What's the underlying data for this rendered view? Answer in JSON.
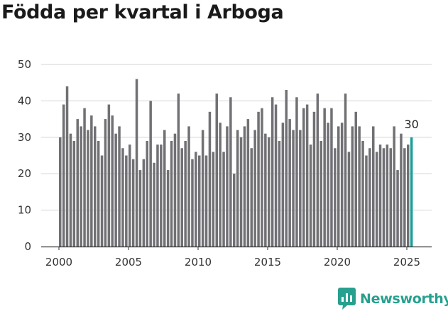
{
  "chart_data": {
    "type": "bar",
    "title": "Födda per kvartal i Arboga",
    "ylim": [
      0,
      50
    ],
    "y_ticks": [
      0,
      10,
      20,
      30,
      40,
      50
    ],
    "x_ticks": [
      2000,
      2005,
      2010,
      2015,
      2020,
      2025
    ],
    "x_start": 2000,
    "quarters_per_year": 4,
    "grid": true,
    "highlight_label": "30",
    "colors": {
      "bar": "#717074",
      "highlight": "#1a9e98",
      "grid": "#d4d4d4",
      "axis": "#333333"
    },
    "values": [
      30,
      39,
      44,
      31,
      29,
      35,
      33,
      38,
      32,
      36,
      33,
      29,
      25,
      35,
      39,
      36,
      31,
      33,
      27,
      25,
      28,
      24,
      46,
      21,
      24,
      29,
      40,
      23,
      28,
      28,
      32,
      21,
      29,
      31,
      42,
      27,
      29,
      33,
      24,
      26,
      25,
      32,
      25,
      37,
      26,
      42,
      34,
      26,
      33,
      41,
      20,
      32,
      30,
      33,
      35,
      27,
      32,
      37,
      38,
      31,
      30,
      41,
      39,
      29,
      34,
      43,
      35,
      32,
      41,
      32,
      38,
      39,
      28,
      37,
      42,
      29,
      38,
      34,
      38,
      27,
      33,
      34,
      42,
      26,
      33,
      37,
      33,
      29,
      25,
      27,
      33,
      26,
      28,
      27,
      28,
      27,
      33,
      21,
      31,
      27,
      28,
      30
    ]
  },
  "brand": {
    "name": "Newsworthy",
    "icon": "chart-bubble-icon"
  }
}
